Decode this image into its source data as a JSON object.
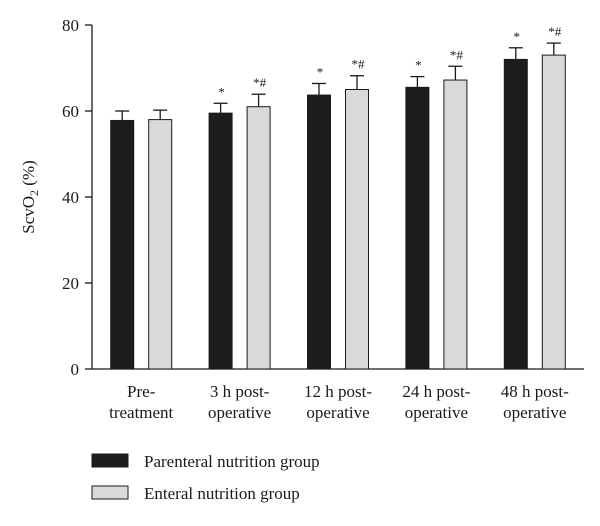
{
  "chart_data": {
    "type": "bar",
    "ylabel_main": "ScvO",
    "ylabel_sub": "2",
    "ylabel_unit": " (%)",
    "ylim": [
      0,
      80
    ],
    "yticks": [
      "0",
      "20",
      "40",
      "60",
      "80"
    ],
    "grid": false,
    "legend_position": "bottom",
    "categories": [
      [
        "Pre-",
        "treatment"
      ],
      [
        "3 h post-",
        "operative"
      ],
      [
        "12 h post-",
        "operative"
      ],
      [
        "24 h post-",
        "operative"
      ],
      [
        "48 h post-",
        "operative"
      ]
    ],
    "series": [
      {
        "name": "Parenteral nutrition group",
        "color": "#1c1c1c",
        "values": [
          57.8,
          59.5,
          63.7,
          65.5,
          72.0
        ],
        "errors": [
          2.2,
          2.3,
          2.7,
          2.5,
          2.7
        ],
        "annotations": [
          "",
          "*",
          "*",
          "*",
          "*"
        ]
      },
      {
        "name": "Enteral nutrition group",
        "color": "#d9d9d9",
        "values": [
          58.0,
          61.0,
          65.0,
          67.2,
          73.0
        ],
        "errors": [
          2.2,
          2.9,
          3.2,
          3.2,
          2.8
        ],
        "annotations": [
          "",
          "*#",
          "*#",
          "*#",
          "*#"
        ]
      }
    ]
  }
}
